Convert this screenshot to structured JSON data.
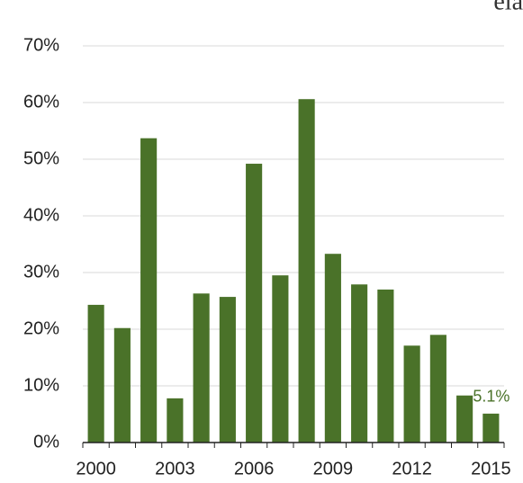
{
  "chart_data": {
    "type": "bar",
    "logo": "eia",
    "categories": [
      "2000",
      null,
      null,
      "2003",
      null,
      null,
      "2006",
      null,
      null,
      "2009",
      null,
      null,
      "2012",
      null,
      null,
      "2015"
    ],
    "values": [
      24.3,
      20.2,
      53.7,
      7.8,
      26.3,
      25.7,
      49.2,
      29.5,
      60.6,
      33.3,
      27.9,
      27.0,
      17.1,
      19.0,
      8.3,
      5.1
    ],
    "value_labels": [
      null,
      null,
      null,
      null,
      null,
      null,
      null,
      null,
      null,
      null,
      null,
      null,
      null,
      null,
      null,
      "5.1%"
    ],
    "color": "#4a7229",
    "ylim": [
      0,
      70
    ],
    "yticks": [
      {
        "value": 0,
        "label": "0%"
      },
      {
        "value": 10,
        "label": "10%"
      },
      {
        "value": 20,
        "label": "20%"
      },
      {
        "value": 30,
        "label": "30%"
      },
      {
        "value": 40,
        "label": "40%"
      },
      {
        "value": 50,
        "label": "50%"
      },
      {
        "value": 60,
        "label": "60%"
      },
      {
        "value": 70,
        "label": "70%"
      }
    ],
    "grid": true
  }
}
